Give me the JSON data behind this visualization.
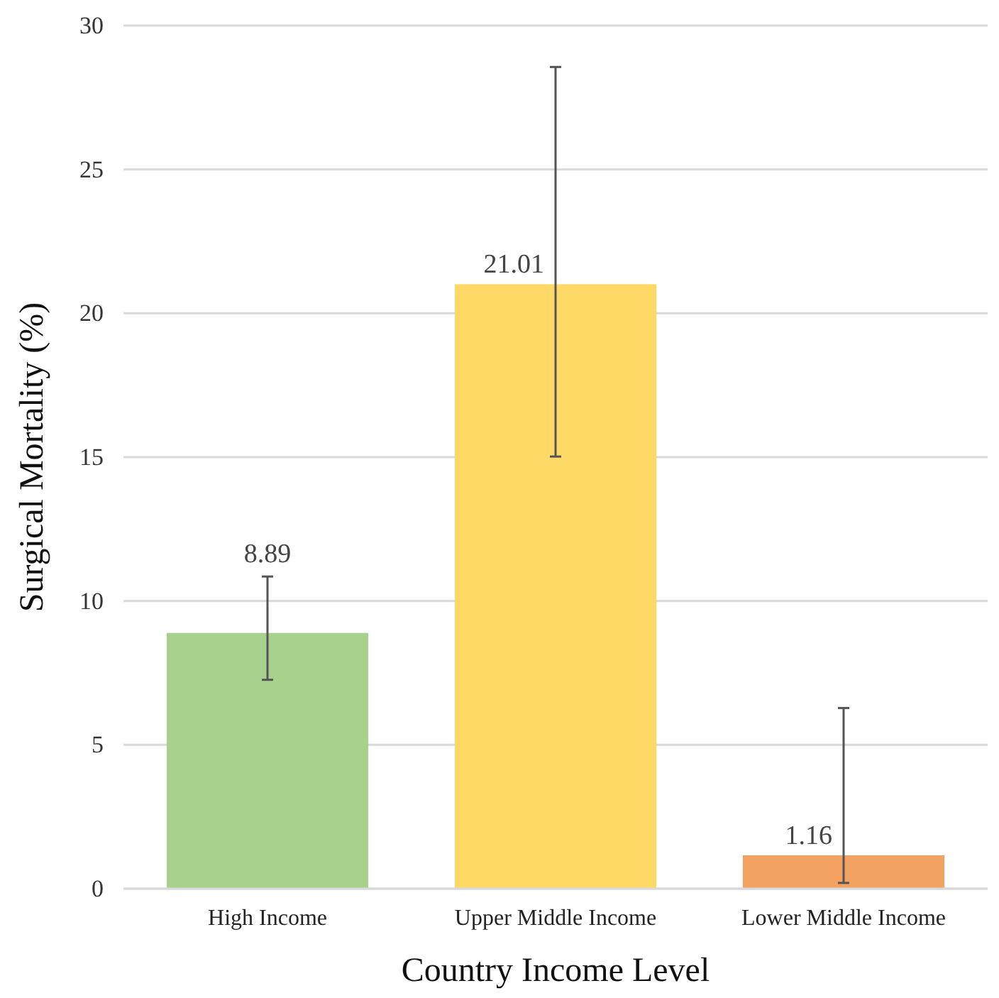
{
  "chart_data": {
    "type": "bar",
    "xlabel": "Country Income Level",
    "ylabel": "Surgical Mortality (%)",
    "categories": [
      "High Income",
      "Upper Middle Income",
      "Lower Middle Income"
    ],
    "values": [
      8.89,
      21.01,
      1.16
    ],
    "colors": [
      "#a9d18e",
      "#ffd966",
      "#f4a261"
    ],
    "errors": [
      [
        7.26,
        10.85
      ],
      [
        15.02,
        28.56
      ],
      [
        0.2,
        6.28
      ]
    ],
    "data_labels": true,
    "ylim": [
      0,
      30
    ],
    "yticks": [
      0,
      5,
      10,
      15,
      20,
      25,
      30
    ],
    "grid": "y"
  }
}
